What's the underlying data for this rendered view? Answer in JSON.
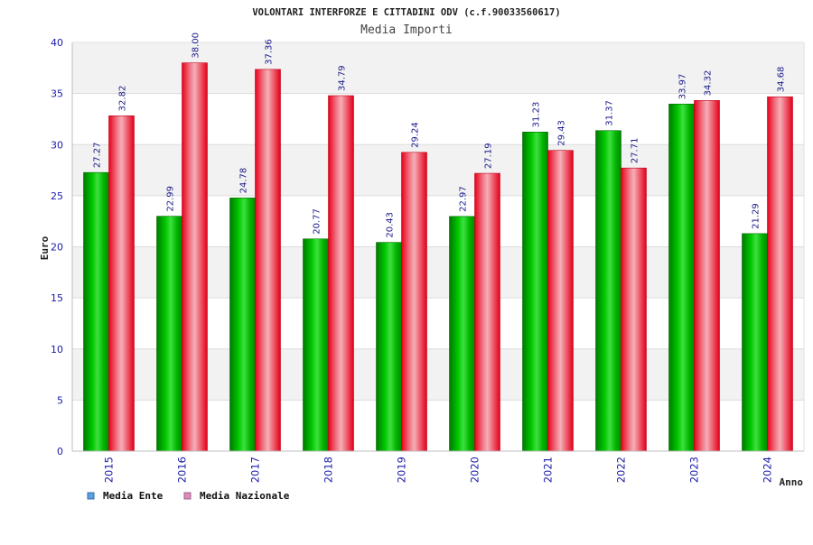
{
  "title": "VOLONTARI INTERFORZE E CITTADINI ODV (c.f.90033560617)",
  "subtitle": "Media Importi",
  "colors": {
    "ente": "#00b000",
    "nazionale": "#ee0011",
    "legend_ente": "#5aa0e6",
    "legend_nazionale": "#d98cba",
    "band": "#f2f2f2",
    "tick_text": "#1a1aa8"
  },
  "chart_data": {
    "type": "bar",
    "title": "VOLONTARI INTERFORZE E CITTADINI ODV (c.f.90033560617)",
    "subtitle": "Media Importi",
    "xlabel": "Anno",
    "ylabel": "Euro",
    "ylim": [
      0,
      40
    ],
    "yticks": [
      0,
      5,
      10,
      15,
      20,
      25,
      30,
      35,
      40
    ],
    "categories": [
      "2015",
      "2016",
      "2017",
      "2018",
      "2019",
      "2020",
      "2021",
      "2022",
      "2023",
      "2024"
    ],
    "series": [
      {
        "name": "Media Ente",
        "values": [
          27.27,
          22.99,
          24.78,
          20.77,
          20.43,
          22.97,
          31.23,
          31.37,
          33.97,
          21.29
        ]
      },
      {
        "name": "Media Nazionale",
        "values": [
          32.82,
          38.0,
          37.36,
          34.79,
          29.24,
          27.19,
          29.43,
          27.71,
          34.32,
          34.68
        ]
      }
    ],
    "value_labels": [
      [
        "27.27",
        "22.99",
        "24.78",
        "20.77",
        "20.43",
        "22.97",
        "31.23",
        "31.37",
        "33.97",
        "21.29"
      ],
      [
        "32.82",
        "38.00",
        "37.36",
        "34.79",
        "29.24",
        "27.19",
        "29.43",
        "27.71",
        "34.32",
        "34.68"
      ]
    ],
    "grid": true,
    "legend_position": "bottom-left"
  }
}
